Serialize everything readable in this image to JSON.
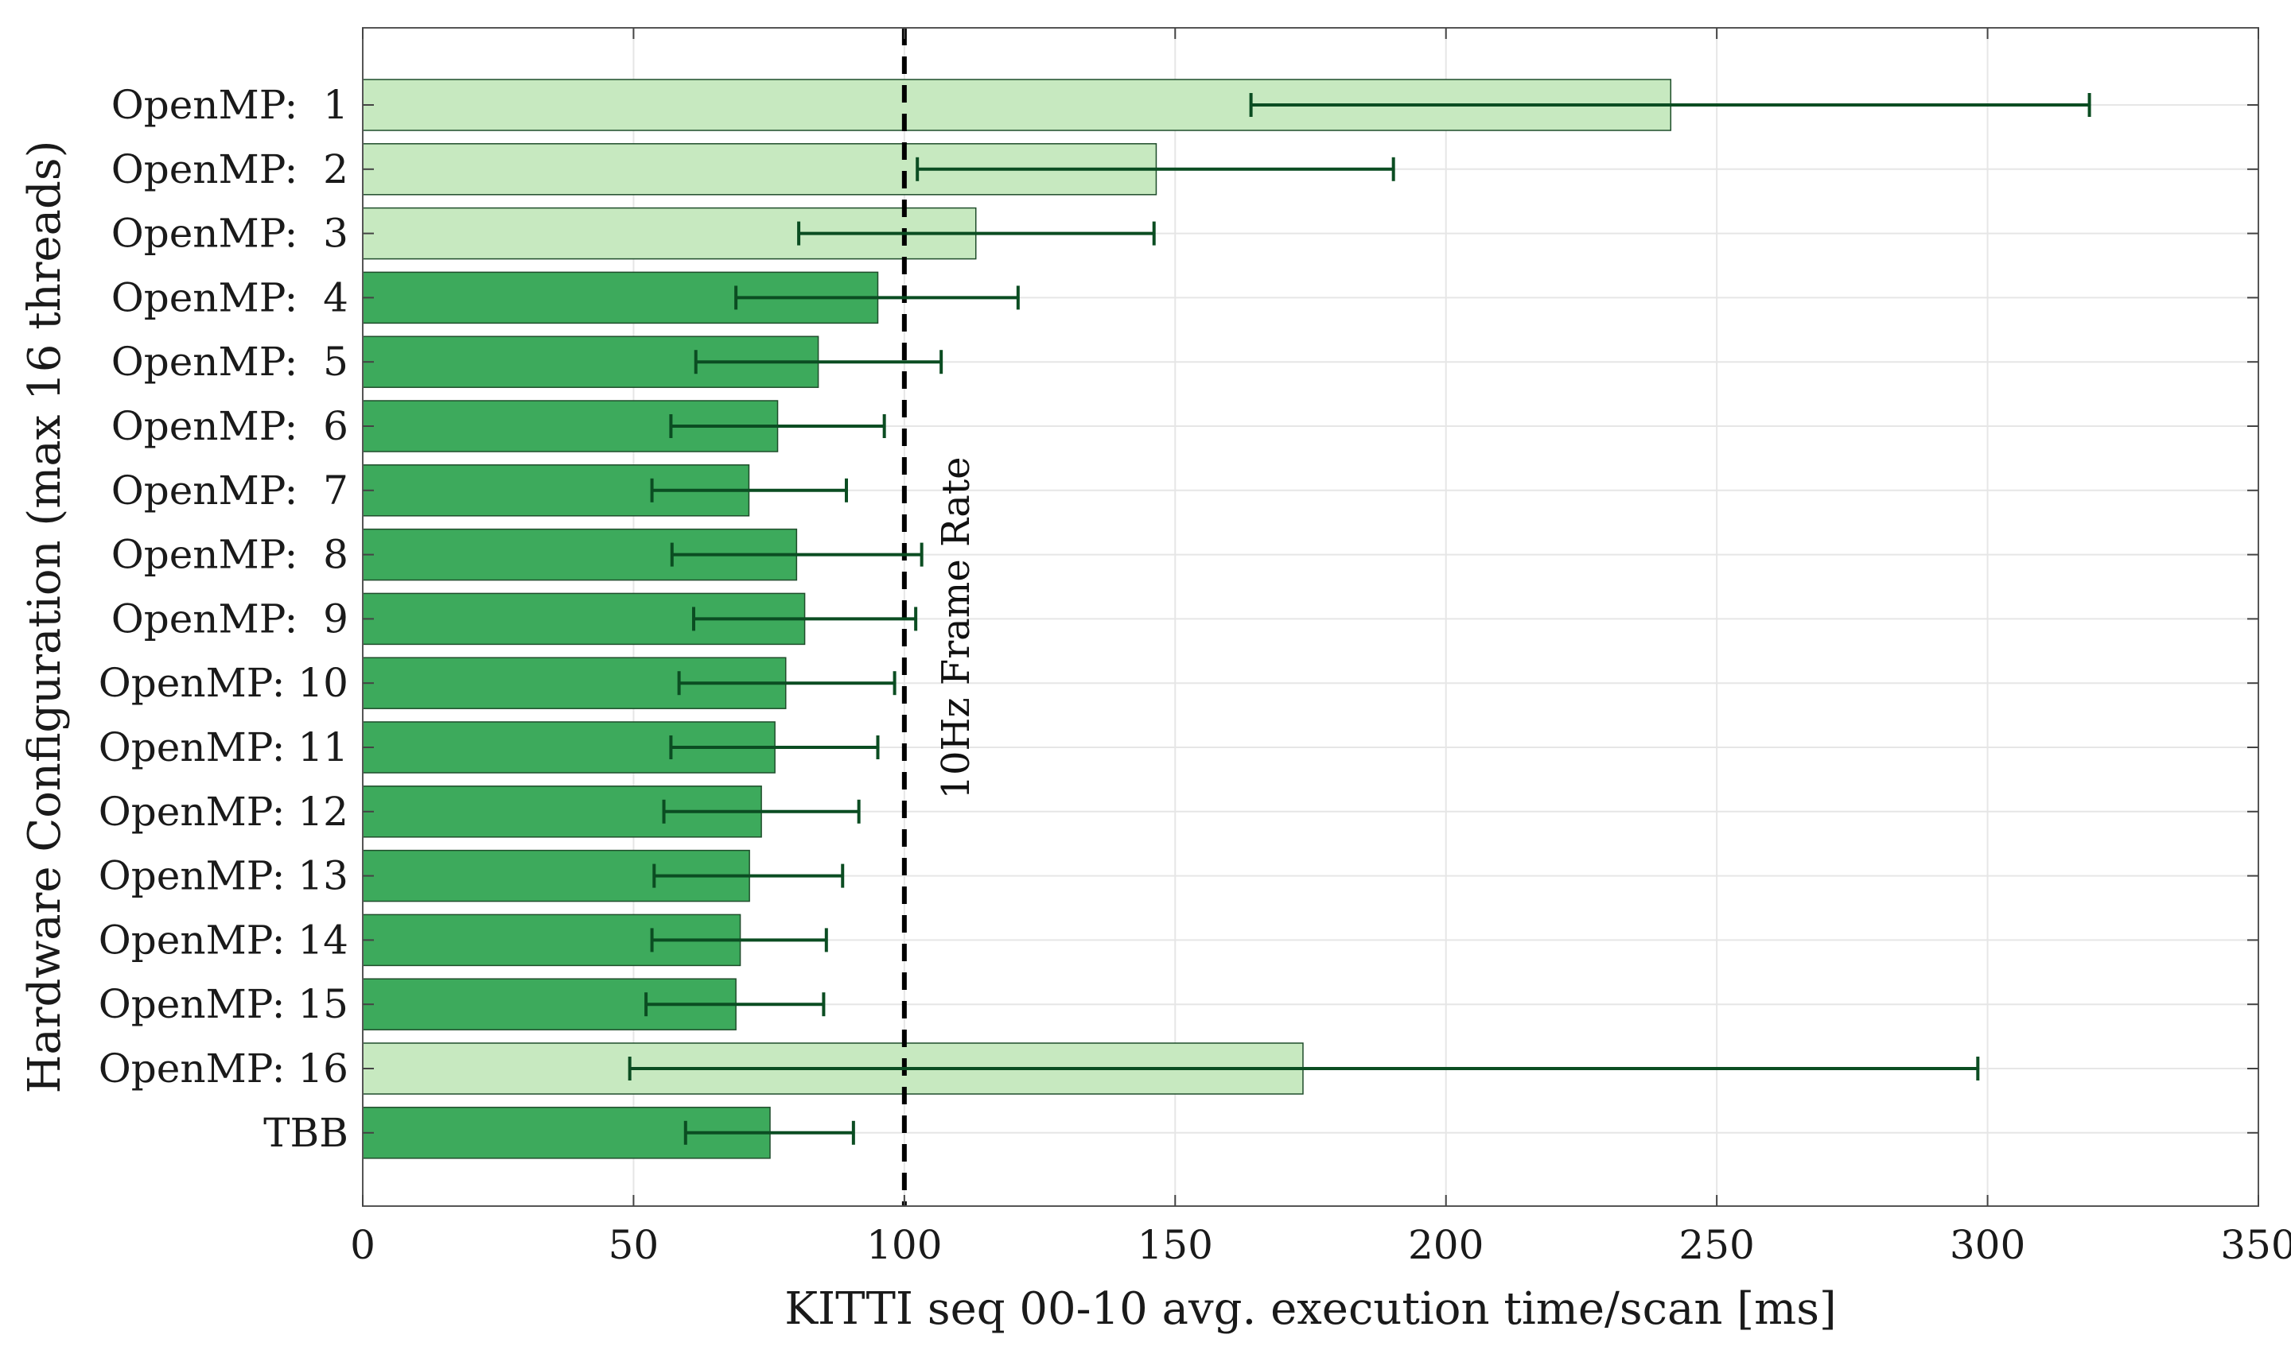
{
  "chart_data": {
    "type": "bar",
    "orientation": "horizontal",
    "categories": [
      "OpenMP:  1",
      "OpenMP:  2",
      "OpenMP:  3",
      "OpenMP:  4",
      "OpenMP:  5",
      "OpenMP:  6",
      "OpenMP:  7",
      "OpenMP:  8",
      "OpenMP:  9",
      "OpenMP: 10",
      "OpenMP: 11",
      "OpenMP: 12",
      "OpenMP: 13",
      "OpenMP: 14",
      "OpenMP: 15",
      "OpenMP: 16",
      "TBB"
    ],
    "values": [
      241.5,
      146.5,
      113.2,
      95.1,
      84.1,
      76.6,
      71.3,
      80.1,
      81.6,
      78.1,
      76.1,
      73.6,
      71.4,
      69.7,
      68.9,
      173.6,
      75.2
    ],
    "error_low": [
      164,
      102.4,
      80.5,
      68.9,
      61.5,
      56.9,
      53.4,
      57.1,
      61.1,
      58.4,
      56.9,
      55.6,
      53.8,
      53.4,
      52.3,
      49.3,
      59.6
    ],
    "error_high": [
      318.8,
      190.3,
      146.1,
      121,
      106.8,
      96.3,
      89.3,
      103.2,
      102.1,
      98.2,
      95.1,
      91.6,
      88.6,
      85.6,
      85.1,
      298.2,
      90.6
    ],
    "exceeds_frame_rate": [
      true,
      true,
      true,
      false,
      false,
      false,
      false,
      false,
      false,
      false,
      false,
      false,
      false,
      false,
      false,
      true,
      false
    ],
    "xlabel": "KITTI seq 00-10 avg. execution time/scan [ms]",
    "ylabel": "Hardware Configuration (max 16 threads)",
    "xlim": [
      0,
      350
    ],
    "xticks": [
      0,
      50,
      100,
      150,
      200,
      250,
      300,
      350
    ],
    "grid": true,
    "reference_line": {
      "value": 100,
      "label": "10Hz Frame Rate",
      "style": "dashed"
    },
    "colors": {
      "bar_fast": "#3daa5c",
      "bar_slow": "#c7e9c0",
      "bar_edge": "#1f4d2b",
      "errorbar": "#0b4d22",
      "reference": "#000000"
    }
  }
}
